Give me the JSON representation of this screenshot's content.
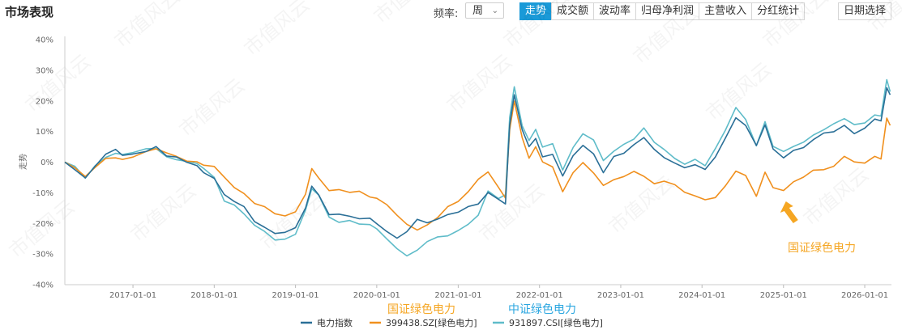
{
  "header": {
    "title": "市场表现",
    "freq_label": "频率:",
    "freq_value": "周",
    "tabs": [
      {
        "label": "走势",
        "active": true
      },
      {
        "label": "成交额",
        "active": false
      },
      {
        "label": "波动率",
        "active": false
      },
      {
        "label": "归母净利润",
        "active": false
      },
      {
        "label": "主营收入",
        "active": false
      },
      {
        "label": "分红统计",
        "active": false
      }
    ],
    "date_button": "日期选择"
  },
  "watermark": "市值风云",
  "colors": {
    "s1": "#2a6f97",
    "s2": "#f0901e",
    "s3": "#5fbcc9",
    "accent": "#1a9ad8",
    "annot_orange": "#f5a623",
    "annot_blue": "#2aa6e0"
  },
  "chart_data": {
    "type": "line",
    "ylabel": "走势",
    "ylim": [
      -40,
      40
    ],
    "yticks": [
      "40%",
      "30%",
      "20%",
      "10%",
      "0%",
      "-10%",
      "-20%",
      "-30%",
      "-40%"
    ],
    "xticks": [
      "2017-01-01",
      "2018-01-01",
      "2019-01-01",
      "2020-01-01",
      "2021-01-01",
      "2022-01-01",
      "2023-01-01",
      "2024-01-01",
      "2025-01-01",
      "2026-01-01"
    ],
    "xrange": [
      "2016-03-01",
      "2026-05-01"
    ],
    "grid": false,
    "legend_position": "bottom",
    "series": [
      {
        "name": "电力指数",
        "points": [
          [
            "2016-03-01",
            0
          ],
          [
            "2016-04-15",
            -2
          ],
          [
            "2016-06-01",
            -5
          ],
          [
            "2016-07-15",
            -1
          ],
          [
            "2016-09-01",
            2
          ],
          [
            "2016-10-15",
            4
          ],
          [
            "2016-11-15",
            2
          ],
          [
            "2017-01-01",
            3
          ],
          [
            "2017-03-01",
            4
          ],
          [
            "2017-04-15",
            5
          ],
          [
            "2017-06-01",
            2
          ],
          [
            "2017-07-15",
            1
          ],
          [
            "2017-09-01",
            0
          ],
          [
            "2017-10-15",
            -1
          ],
          [
            "2017-11-15",
            -3
          ],
          [
            "2018-01-01",
            -5
          ],
          [
            "2018-02-15",
            -11
          ],
          [
            "2018-04-01",
            -13
          ],
          [
            "2018-05-15",
            -15
          ],
          [
            "2018-07-01",
            -19
          ],
          [
            "2018-08-15",
            -21
          ],
          [
            "2018-10-01",
            -23
          ],
          [
            "2018-11-15",
            -23
          ],
          [
            "2019-01-01",
            -22
          ],
          [
            "2019-02-15",
            -15
          ],
          [
            "2019-03-15",
            -8
          ],
          [
            "2019-04-15",
            -10
          ],
          [
            "2019-06-01",
            -17
          ],
          [
            "2019-07-15",
            -17
          ],
          [
            "2019-09-01",
            -18
          ],
          [
            "2019-10-15",
            -19
          ],
          [
            "2019-12-01",
            -18
          ],
          [
            "2020-01-01",
            -20
          ],
          [
            "2020-02-15",
            -22
          ],
          [
            "2020-04-01",
            -25
          ],
          [
            "2020-05-15",
            -23
          ],
          [
            "2020-07-01",
            -19
          ],
          [
            "2020-08-15",
            -20
          ],
          [
            "2020-10-01",
            -18
          ],
          [
            "2020-11-15",
            -17
          ],
          [
            "2021-01-01",
            -16
          ],
          [
            "2021-02-15",
            -15
          ],
          [
            "2021-04-01",
            -14
          ],
          [
            "2021-05-15",
            -10
          ],
          [
            "2021-07-01",
            -12
          ],
          [
            "2021-08-01",
            -13
          ],
          [
            "2021-08-20",
            12
          ],
          [
            "2021-09-10",
            22
          ],
          [
            "2021-10-15",
            10
          ],
          [
            "2021-11-15",
            5
          ],
          [
            "2021-12-15",
            8
          ],
          [
            "2022-01-15",
            2
          ],
          [
            "2022-03-01",
            3
          ],
          [
            "2022-04-15",
            -5
          ],
          [
            "2022-06-01",
            2
          ],
          [
            "2022-07-15",
            5
          ],
          [
            "2022-09-01",
            3
          ],
          [
            "2022-10-15",
            -3
          ],
          [
            "2022-12-01",
            2
          ],
          [
            "2023-01-15",
            3
          ],
          [
            "2023-03-01",
            5
          ],
          [
            "2023-04-15",
            8
          ],
          [
            "2023-06-01",
            4
          ],
          [
            "2023-07-15",
            2
          ],
          [
            "2023-09-01",
            0
          ],
          [
            "2023-10-15",
            -2
          ],
          [
            "2023-12-01",
            -1
          ],
          [
            "2024-01-15",
            -3
          ],
          [
            "2024-03-01",
            2
          ],
          [
            "2024-04-15",
            8
          ],
          [
            "2024-06-01",
            15
          ],
          [
            "2024-07-15",
            12
          ],
          [
            "2024-09-01",
            5
          ],
          [
            "2024-10-10",
            12
          ],
          [
            "2024-11-15",
            4
          ],
          [
            "2025-01-01",
            2
          ],
          [
            "2025-02-15",
            4
          ],
          [
            "2025-04-01",
            5
          ],
          [
            "2025-05-15",
            7
          ],
          [
            "2025-07-01",
            9
          ],
          [
            "2025-08-15",
            10
          ],
          [
            "2025-10-01",
            12
          ],
          [
            "2025-11-15",
            10
          ],
          [
            "2026-01-01",
            11
          ],
          [
            "2026-02-15",
            14
          ],
          [
            "2026-03-15",
            13
          ],
          [
            "2026-04-10",
            24
          ],
          [
            "2026-04-25",
            22
          ]
        ]
      },
      {
        "name": "399438.SZ[绿色电力]",
        "points": [
          [
            "2016-03-01",
            0
          ],
          [
            "2016-04-15",
            -2
          ],
          [
            "2016-06-01",
            -5
          ],
          [
            "2016-07-15",
            -2
          ],
          [
            "2016-09-01",
            1
          ],
          [
            "2016-10-15",
            2
          ],
          [
            "2016-11-15",
            1
          ],
          [
            "2017-01-01",
            2
          ],
          [
            "2017-03-01",
            3
          ],
          [
            "2017-04-15",
            4
          ],
          [
            "2017-06-01",
            3
          ],
          [
            "2017-07-15",
            2
          ],
          [
            "2017-09-01",
            1
          ],
          [
            "2017-10-15",
            0
          ],
          [
            "2017-11-15",
            -1
          ],
          [
            "2018-01-01",
            -2
          ],
          [
            "2018-02-15",
            -5
          ],
          [
            "2018-04-01",
            -8
          ],
          [
            "2018-05-15",
            -10
          ],
          [
            "2018-07-01",
            -13
          ],
          [
            "2018-08-15",
            -15
          ],
          [
            "2018-10-01",
            -17
          ],
          [
            "2018-11-15",
            -18
          ],
          [
            "2019-01-01",
            -16
          ],
          [
            "2019-02-15",
            -10
          ],
          [
            "2019-03-15",
            -2
          ],
          [
            "2019-04-15",
            -5
          ],
          [
            "2019-06-01",
            -10
          ],
          [
            "2019-07-15",
            -9
          ],
          [
            "2019-09-01",
            -10
          ],
          [
            "2019-10-15",
            -9
          ],
          [
            "2019-12-01",
            -11
          ],
          [
            "2020-01-01",
            -12
          ],
          [
            "2020-02-15",
            -14
          ],
          [
            "2020-04-01",
            -18
          ],
          [
            "2020-05-15",
            -20
          ],
          [
            "2020-07-01",
            -22
          ],
          [
            "2020-08-15",
            -20
          ],
          [
            "2020-10-01",
            -18
          ],
          [
            "2020-11-15",
            -15
          ],
          [
            "2021-01-01",
            -13
          ],
          [
            "2021-02-15",
            -10
          ],
          [
            "2021-04-01",
            -5
          ],
          [
            "2021-05-15",
            -3
          ],
          [
            "2021-07-01",
            -8
          ],
          [
            "2021-08-01",
            -12
          ],
          [
            "2021-08-20",
            10
          ],
          [
            "2021-09-10",
            20
          ],
          [
            "2021-10-15",
            8
          ],
          [
            "2021-11-15",
            2
          ],
          [
            "2021-12-15",
            5
          ],
          [
            "2022-01-15",
            0
          ],
          [
            "2022-03-01",
            -2
          ],
          [
            "2022-04-15",
            -10
          ],
          [
            "2022-06-01",
            -3
          ],
          [
            "2022-07-15",
            0
          ],
          [
            "2022-09-01",
            -3
          ],
          [
            "2022-10-15",
            -8
          ],
          [
            "2022-12-01",
            -6
          ],
          [
            "2023-01-15",
            -5
          ],
          [
            "2023-03-01",
            -3
          ],
          [
            "2023-04-15",
            -4
          ],
          [
            "2023-06-01",
            -7
          ],
          [
            "2023-07-15",
            -6
          ],
          [
            "2023-09-01",
            -8
          ],
          [
            "2023-10-15",
            -10
          ],
          [
            "2023-12-01",
            -11
          ],
          [
            "2024-01-15",
            -12
          ],
          [
            "2024-03-01",
            -11
          ],
          [
            "2024-04-15",
            -8
          ],
          [
            "2024-06-01",
            -3
          ],
          [
            "2024-07-15",
            -5
          ],
          [
            "2024-09-01",
            -11
          ],
          [
            "2024-10-10",
            -3
          ],
          [
            "2024-11-15",
            -8
          ],
          [
            "2025-01-01",
            -9
          ],
          [
            "2025-02-15",
            -7
          ],
          [
            "2025-04-01",
            -5
          ],
          [
            "2025-05-15",
            -3
          ],
          [
            "2025-07-01",
            -2
          ],
          [
            "2025-08-15",
            -1
          ],
          [
            "2025-10-01",
            2
          ],
          [
            "2025-11-15",
            0
          ],
          [
            "2026-01-01",
            -1
          ],
          [
            "2026-02-15",
            2
          ],
          [
            "2026-03-15",
            1
          ],
          [
            "2026-04-10",
            15
          ],
          [
            "2026-04-25",
            12
          ]
        ]
      },
      {
        "name": "931897.CSI[绿色电力]",
        "points": [
          [
            "2016-03-01",
            0
          ],
          [
            "2016-04-15",
            -2
          ],
          [
            "2016-06-01",
            -5
          ],
          [
            "2016-07-15",
            -1
          ],
          [
            "2016-09-01",
            2
          ],
          [
            "2016-10-15",
            3
          ],
          [
            "2016-11-15",
            2
          ],
          [
            "2017-01-01",
            3
          ],
          [
            "2017-03-01",
            4
          ],
          [
            "2017-04-15",
            5
          ],
          [
            "2017-06-01",
            2
          ],
          [
            "2017-07-15",
            1
          ],
          [
            "2017-09-01",
            0
          ],
          [
            "2017-10-15",
            -1
          ],
          [
            "2017-11-15",
            -2
          ],
          [
            "2018-01-01",
            -5
          ],
          [
            "2018-02-15",
            -12
          ],
          [
            "2018-04-01",
            -14
          ],
          [
            "2018-05-15",
            -17
          ],
          [
            "2018-07-01",
            -21
          ],
          [
            "2018-08-15",
            -23
          ],
          [
            "2018-10-01",
            -25
          ],
          [
            "2018-11-15",
            -25
          ],
          [
            "2019-01-01",
            -23
          ],
          [
            "2019-02-15",
            -16
          ],
          [
            "2019-03-15",
            -9
          ],
          [
            "2019-04-15",
            -11
          ],
          [
            "2019-06-01",
            -18
          ],
          [
            "2019-07-15",
            -19
          ],
          [
            "2019-09-01",
            -19
          ],
          [
            "2019-10-15",
            -20
          ],
          [
            "2019-12-01",
            -21
          ],
          [
            "2020-01-01",
            -22
          ],
          [
            "2020-02-15",
            -25
          ],
          [
            "2020-04-01",
            -28
          ],
          [
            "2020-05-15",
            -30
          ],
          [
            "2020-07-01",
            -29
          ],
          [
            "2020-08-15",
            -26
          ],
          [
            "2020-10-01",
            -25
          ],
          [
            "2020-11-15",
            -24
          ],
          [
            "2021-01-01",
            -22
          ],
          [
            "2021-02-15",
            -20
          ],
          [
            "2021-04-01",
            -17
          ],
          [
            "2021-05-15",
            -10
          ],
          [
            "2021-07-01",
            -12
          ],
          [
            "2021-08-01",
            -11
          ],
          [
            "2021-08-20",
            15
          ],
          [
            "2021-09-10",
            25
          ],
          [
            "2021-10-15",
            12
          ],
          [
            "2021-11-15",
            7
          ],
          [
            "2021-12-15",
            10
          ],
          [
            "2022-01-15",
            5
          ],
          [
            "2022-03-01",
            6
          ],
          [
            "2022-04-15",
            -2
          ],
          [
            "2022-06-01",
            5
          ],
          [
            "2022-07-15",
            9
          ],
          [
            "2022-09-01",
            7
          ],
          [
            "2022-10-15",
            0
          ],
          [
            "2022-12-01",
            4
          ],
          [
            "2023-01-15",
            6
          ],
          [
            "2023-03-01",
            8
          ],
          [
            "2023-04-15",
            11
          ],
          [
            "2023-06-01",
            6
          ],
          [
            "2023-07-15",
            4
          ],
          [
            "2023-09-01",
            1
          ],
          [
            "2023-10-15",
            0
          ],
          [
            "2023-12-01",
            1
          ],
          [
            "2024-01-15",
            -1
          ],
          [
            "2024-03-01",
            4
          ],
          [
            "2024-04-15",
            10
          ],
          [
            "2024-06-01",
            18
          ],
          [
            "2024-07-15",
            14
          ],
          [
            "2024-09-01",
            6
          ],
          [
            "2024-10-10",
            13
          ],
          [
            "2024-11-15",
            5
          ],
          [
            "2025-01-01",
            3
          ],
          [
            "2025-02-15",
            5
          ],
          [
            "2025-04-01",
            7
          ],
          [
            "2025-05-15",
            9
          ],
          [
            "2025-07-01",
            11
          ],
          [
            "2025-08-15",
            12
          ],
          [
            "2025-10-01",
            14
          ],
          [
            "2025-11-15",
            12
          ],
          [
            "2026-01-01",
            13
          ],
          [
            "2026-02-15",
            16
          ],
          [
            "2026-03-15",
            15
          ],
          [
            "2026-04-10",
            27
          ],
          [
            "2026-04-25",
            23
          ]
        ]
      }
    ],
    "annotations": [
      {
        "text": "国证绿色电力",
        "date": "2025-01-01",
        "value": -12
      },
      {
        "text": "国证绿色电力",
        "near": "legend"
      },
      {
        "text": "中证绿色电力",
        "near": "legend"
      }
    ]
  }
}
